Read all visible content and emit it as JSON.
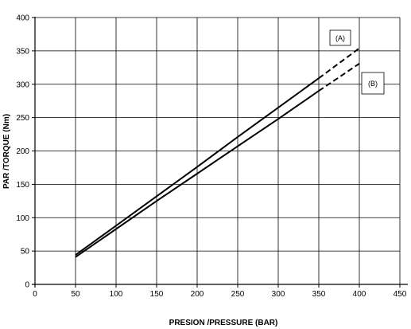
{
  "chart_data": {
    "type": "line",
    "title": "",
    "xlabel": "PRESION /PRESSURE (BAR)",
    "ylabel": "PAR /TORQUE (Nm)",
    "xlim": [
      0,
      450
    ],
    "ylim": [
      0,
      400
    ],
    "xticks": [
      0,
      50,
      100,
      150,
      200,
      250,
      300,
      350,
      400,
      450
    ],
    "yticks": [
      0,
      50,
      100,
      150,
      200,
      250,
      300,
      350,
      400
    ],
    "grid": true,
    "line_color": "#000000",
    "series": [
      {
        "name": "(A)",
        "style": "solid-then-dashed",
        "x": [
          50,
          100,
          150,
          200,
          250,
          300,
          350,
          400
        ],
        "y": [
          44,
          88,
          132,
          176,
          221,
          265,
          309,
          354
        ],
        "dashed_from_x": 350
      },
      {
        "name": "(B)",
        "style": "solid-then-dashed",
        "x": [
          50,
          100,
          150,
          200,
          250,
          300,
          350,
          400
        ],
        "y": [
          41,
          83,
          125,
          166,
          207,
          248,
          290,
          331
        ],
        "dashed_from_x": 350
      }
    ]
  }
}
